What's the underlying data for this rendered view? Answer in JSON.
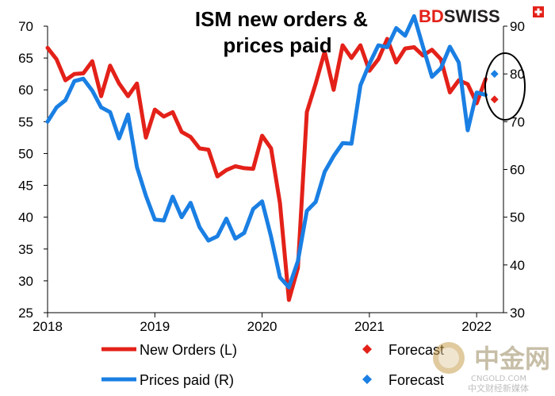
{
  "brand": {
    "name_part1": "BD",
    "name_part2": "SWISS",
    "color_red": "#e32119",
    "color_dark": "#231f20"
  },
  "watermark": {
    "big_text": "中金网",
    "domain": "CNGOLD.COM",
    "sub_text": "中文财经新媒体"
  },
  "chart_data": {
    "type": "line",
    "title_line1": "ISM new orders &",
    "title_line2": "prices paid",
    "x_ticks": [
      "2018",
      "2019",
      "2020",
      "2021",
      "2022"
    ],
    "x_range": [
      "2018-01",
      "2022-04"
    ],
    "y_left": {
      "min": 25,
      "max": 70,
      "ticks": [
        25,
        30,
        35,
        40,
        45,
        50,
        55,
        60,
        65,
        70
      ]
    },
    "y_right": {
      "min": 30,
      "max": 90,
      "ticks": [
        30,
        40,
        50,
        60,
        70,
        80,
        90
      ]
    },
    "legend_position": "bottom",
    "series": [
      {
        "name": "New Orders (L)",
        "axis": "left",
        "color": "#e32119",
        "dates": [
          "2018-01",
          "2018-02",
          "2018-03",
          "2018-04",
          "2018-05",
          "2018-06",
          "2018-07",
          "2018-08",
          "2018-09",
          "2018-10",
          "2018-11",
          "2018-12",
          "2019-01",
          "2019-02",
          "2019-03",
          "2019-04",
          "2019-05",
          "2019-06",
          "2019-07",
          "2019-08",
          "2019-09",
          "2019-10",
          "2019-11",
          "2019-12",
          "2020-01",
          "2020-02",
          "2020-03",
          "2020-04",
          "2020-05",
          "2020-06",
          "2020-07",
          "2020-08",
          "2020-09",
          "2020-10",
          "2020-11",
          "2020-12",
          "2021-01",
          "2021-02",
          "2021-03",
          "2021-04",
          "2021-05",
          "2021-06",
          "2021-07",
          "2021-08",
          "2021-09",
          "2021-10",
          "2021-11",
          "2021-12",
          "2022-01",
          "2022-02"
        ],
        "values": [
          66.6,
          64.8,
          61.5,
          62.5,
          62.6,
          64.5,
          59.0,
          63.8,
          61.0,
          59.0,
          61.0,
          52.5,
          56.9,
          55.8,
          56.5,
          53.4,
          52.6,
          50.8,
          50.6,
          46.4,
          47.4,
          48.0,
          47.7,
          47.6,
          52.8,
          50.8,
          42.2,
          27.0,
          32.0,
          56.5,
          61.0,
          66.0,
          60.0,
          67.0,
          65.0,
          67.0,
          63.0,
          64.8,
          68.0,
          64.3,
          66.5,
          66.7,
          65.4,
          66.3,
          64.8,
          59.6,
          61.5,
          60.9,
          57.9,
          61.7
        ]
      },
      {
        "name": "Prices paid (R)",
        "axis": "right",
        "color": "#1a7fe3",
        "dates": [
          "2018-01",
          "2018-02",
          "2018-03",
          "2018-04",
          "2018-05",
          "2018-06",
          "2018-07",
          "2018-08",
          "2018-09",
          "2018-10",
          "2018-11",
          "2018-12",
          "2019-01",
          "2019-02",
          "2019-03",
          "2019-04",
          "2019-05",
          "2019-06",
          "2019-07",
          "2019-08",
          "2019-09",
          "2019-10",
          "2019-11",
          "2019-12",
          "2020-01",
          "2020-02",
          "2020-03",
          "2020-04",
          "2020-05",
          "2020-06",
          "2020-07",
          "2020-08",
          "2020-09",
          "2020-10",
          "2020-11",
          "2020-12",
          "2021-01",
          "2021-02",
          "2021-03",
          "2021-04",
          "2021-05",
          "2021-06",
          "2021-07",
          "2021-08",
          "2021-09",
          "2021-10",
          "2021-11",
          "2021-12",
          "2022-01",
          "2022-02"
        ],
        "values": [
          70.0,
          73.0,
          74.5,
          78.5,
          79.0,
          76.5,
          73.0,
          72.0,
          66.5,
          71.5,
          60.5,
          54.5,
          49.5,
          49.3,
          54.3,
          50.0,
          53.0,
          47.9,
          45.1,
          46.0,
          49.7,
          45.5,
          46.7,
          51.7,
          53.3,
          45.9,
          37.4,
          35.3,
          40.8,
          51.3,
          53.2,
          59.5,
          62.8,
          65.5,
          65.4,
          77.6,
          82.1,
          86.0,
          85.6,
          89.6,
          88.0,
          92.1,
          85.7,
          79.4,
          81.2,
          85.7,
          82.4,
          68.2,
          76.1,
          75.6
        ]
      },
      {
        "name": "Forecast",
        "axis": "left",
        "marker": "diamond",
        "color": "#e32119",
        "dates": [
          "2022-03"
        ],
        "values": [
          58.5
        ]
      },
      {
        "name": "Forecast",
        "axis": "right",
        "marker": "diamond",
        "color": "#1a7fe3",
        "dates": [
          "2022-03"
        ],
        "values": [
          80.0
        ]
      }
    ],
    "annotations": [
      {
        "type": "ellipse",
        "note": "highlight forecasts",
        "around": "2022-03"
      }
    ]
  }
}
